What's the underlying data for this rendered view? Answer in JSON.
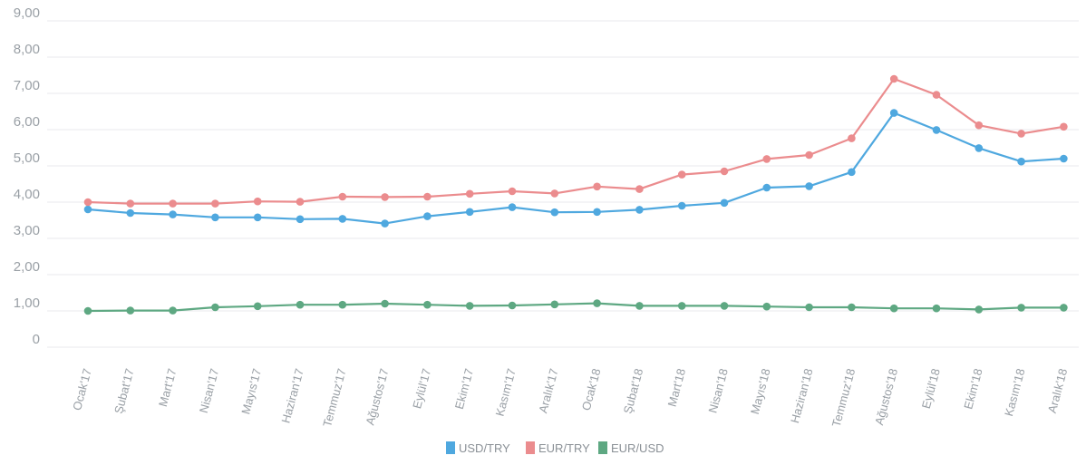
{
  "chart_data": {
    "type": "line",
    "categories": [
      "Ocak'17",
      "Şubat'17",
      "Mart'17",
      "Nisan'17",
      "Mayıs'17",
      "Haziran'17",
      "Temmuz'17",
      "Ağustos'17",
      "Eylül'17",
      "Ekim'17",
      "Kasım'17",
      "Aralık'17",
      "Ocak'18",
      "Şubat'18",
      "Mart'18",
      "Nisan'18",
      "Mayıs'18",
      "Haziran'18",
      "Temmuz'18",
      "Ağustos'18",
      "Eylül'18",
      "Ekim'18",
      "Kasım'18",
      "Aralık'18"
    ],
    "y_ticks": [
      "0",
      "1,00",
      "2,00",
      "3,00",
      "4,00",
      "5,00",
      "6,00",
      "7,00",
      "8,00",
      "9,00"
    ],
    "ylim": [
      0,
      9
    ],
    "grid": true,
    "legend_position": "bottom-center",
    "series": [
      {
        "name": "USD/TRY",
        "color": "#4fa8df",
        "values": [
          3.8,
          3.7,
          3.66,
          3.58,
          3.58,
          3.53,
          3.54,
          3.41,
          3.61,
          3.73,
          3.86,
          3.72,
          3.73,
          3.79,
          3.9,
          3.98,
          4.4,
          4.44,
          4.83,
          6.46,
          5.99,
          5.49,
          5.12,
          5.2
        ]
      },
      {
        "name": "EUR/TRY",
        "color": "#eb8c8e",
        "values": [
          4.0,
          3.96,
          3.96,
          3.96,
          4.02,
          4.01,
          4.15,
          4.14,
          4.15,
          4.23,
          4.3,
          4.24,
          4.43,
          4.36,
          4.76,
          4.85,
          5.19,
          5.3,
          5.76,
          7.4,
          6.96,
          6.12,
          5.89,
          6.08
        ]
      },
      {
        "name": "EUR/USD",
        "color": "#5ea882",
        "values": [
          1.0,
          1.01,
          1.01,
          1.1,
          1.13,
          1.17,
          1.17,
          1.2,
          1.17,
          1.14,
          1.15,
          1.18,
          1.21,
          1.14,
          1.14,
          1.14,
          1.12,
          1.1,
          1.1,
          1.07,
          1.07,
          1.04,
          1.09,
          1.09
        ]
      }
    ]
  }
}
